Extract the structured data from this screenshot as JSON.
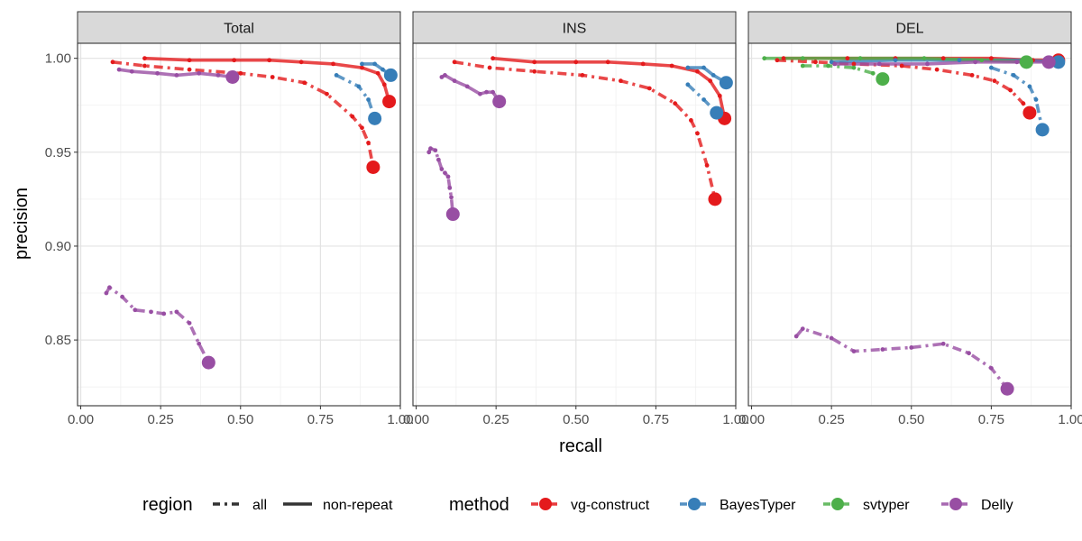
{
  "chart_data": {
    "type": "line",
    "x_label": "recall",
    "y_label": "precision",
    "xlim": [
      -0.01,
      1.0
    ],
    "ylim": [
      0.815,
      1.008
    ],
    "x_ticks": [
      "0.00",
      "0.25",
      "0.50",
      "0.75",
      "1.00"
    ],
    "y_ticks": [
      "0.85",
      "0.90",
      "0.95",
      "1.00"
    ],
    "grid": true,
    "legend_position": "bottom",
    "legend": {
      "region": {
        "title": "region",
        "items": [
          {
            "label": "all",
            "linetype": "dashed"
          },
          {
            "label": "non-repeat",
            "linetype": "solid"
          }
        ]
      },
      "method": {
        "title": "method",
        "items": [
          {
            "label": "vg-construct",
            "color": "#E41A1C"
          },
          {
            "label": "BayesTyper",
            "color": "#377EB8"
          },
          {
            "label": "svtyper",
            "color": "#4DAF4A"
          },
          {
            "label": "Delly",
            "color": "#984EA3"
          }
        ]
      }
    },
    "panels": [
      {
        "title": "Total",
        "series": [
          {
            "method": "vg-construct",
            "region": "all",
            "color": "#E41A1C",
            "points": [
              [
                0.1,
                0.998
              ],
              [
                0.2,
                0.996
              ],
              [
                0.34,
                0.994
              ],
              [
                0.5,
                0.992
              ],
              [
                0.6,
                0.99
              ],
              [
                0.7,
                0.987
              ],
              [
                0.77,
                0.981
              ],
              [
                0.85,
                0.969
              ],
              [
                0.88,
                0.963
              ],
              [
                0.9,
                0.955
              ],
              [
                0.915,
                0.942
              ]
            ]
          },
          {
            "method": "vg-construct",
            "region": "non-repeat",
            "color": "#E41A1C",
            "points": [
              [
                0.2,
                1.0
              ],
              [
                0.34,
                0.999
              ],
              [
                0.48,
                0.999
              ],
              [
                0.59,
                0.999
              ],
              [
                0.69,
                0.998
              ],
              [
                0.79,
                0.997
              ],
              [
                0.88,
                0.995
              ],
              [
                0.93,
                0.992
              ],
              [
                0.95,
                0.986
              ],
              [
                0.965,
                0.977
              ]
            ]
          },
          {
            "method": "BayesTyper",
            "region": "all",
            "color": "#377EB8",
            "points": [
              [
                0.8,
                0.991
              ],
              [
                0.87,
                0.985
              ],
              [
                0.9,
                0.978
              ],
              [
                0.92,
                0.968
              ]
            ]
          },
          {
            "method": "BayesTyper",
            "region": "non-repeat",
            "color": "#377EB8",
            "points": [
              [
                0.88,
                0.997
              ],
              [
                0.92,
                0.997
              ],
              [
                0.945,
                0.994
              ],
              [
                0.97,
                0.991
              ]
            ]
          },
          {
            "method": "Delly",
            "region": "all",
            "color": "#984EA3",
            "points": [
              [
                0.08,
                0.875
              ],
              [
                0.09,
                0.878
              ],
              [
                0.13,
                0.873
              ],
              [
                0.17,
                0.866
              ],
              [
                0.22,
                0.865
              ],
              [
                0.26,
                0.864
              ],
              [
                0.3,
                0.865
              ],
              [
                0.34,
                0.859
              ],
              [
                0.37,
                0.848
              ],
              [
                0.4,
                0.838
              ]
            ]
          },
          {
            "method": "Delly",
            "region": "non-repeat",
            "color": "#984EA3",
            "points": [
              [
                0.12,
                0.994
              ],
              [
                0.16,
                0.993
              ],
              [
                0.24,
                0.992
              ],
              [
                0.3,
                0.991
              ],
              [
                0.37,
                0.992
              ],
              [
                0.43,
                0.991
              ],
              [
                0.475,
                0.99
              ]
            ]
          }
        ]
      },
      {
        "title": "INS",
        "series": [
          {
            "method": "vg-construct",
            "region": "all",
            "color": "#E41A1C",
            "points": [
              [
                0.12,
                0.998
              ],
              [
                0.23,
                0.995
              ],
              [
                0.37,
                0.993
              ],
              [
                0.52,
                0.991
              ],
              [
                0.64,
                0.988
              ],
              [
                0.73,
                0.984
              ],
              [
                0.81,
                0.976
              ],
              [
                0.86,
                0.967
              ],
              [
                0.88,
                0.96
              ],
              [
                0.91,
                0.943
              ],
              [
                0.935,
                0.925
              ]
            ]
          },
          {
            "method": "vg-construct",
            "region": "non-repeat",
            "color": "#E41A1C",
            "points": [
              [
                0.24,
                1.0
              ],
              [
                0.37,
                0.998
              ],
              [
                0.5,
                0.998
              ],
              [
                0.6,
                0.998
              ],
              [
                0.71,
                0.997
              ],
              [
                0.8,
                0.996
              ],
              [
                0.88,
                0.993
              ],
              [
                0.92,
                0.988
              ],
              [
                0.95,
                0.98
              ],
              [
                0.965,
                0.968
              ]
            ]
          },
          {
            "method": "BayesTyper",
            "region": "all",
            "color": "#377EB8",
            "points": [
              [
                0.85,
                0.986
              ],
              [
                0.9,
                0.978
              ],
              [
                0.94,
                0.971
              ]
            ]
          },
          {
            "method": "BayesTyper",
            "region": "non-repeat",
            "color": "#377EB8",
            "points": [
              [
                0.85,
                0.995
              ],
              [
                0.9,
                0.995
              ],
              [
                0.93,
                0.991
              ],
              [
                0.97,
                0.987
              ]
            ]
          },
          {
            "method": "Delly",
            "region": "all",
            "color": "#984EA3",
            "points": [
              [
                0.04,
                0.95
              ],
              [
                0.045,
                0.952
              ],
              [
                0.06,
                0.951
              ],
              [
                0.07,
                0.946
              ],
              [
                0.08,
                0.941
              ],
              [
                0.09,
                0.939
              ],
              [
                0.1,
                0.937
              ],
              [
                0.105,
                0.931
              ],
              [
                0.11,
                0.926
              ],
              [
                0.115,
                0.917
              ]
            ]
          },
          {
            "method": "Delly",
            "region": "non-repeat",
            "color": "#984EA3",
            "points": [
              [
                0.08,
                0.99
              ],
              [
                0.09,
                0.991
              ],
              [
                0.12,
                0.988
              ],
              [
                0.16,
                0.985
              ],
              [
                0.2,
                0.981
              ],
              [
                0.22,
                0.982
              ],
              [
                0.24,
                0.982
              ],
              [
                0.26,
                0.977
              ]
            ]
          }
        ]
      },
      {
        "title": "DEL",
        "series": [
          {
            "method": "vg-construct",
            "region": "all",
            "color": "#E41A1C",
            "points": [
              [
                0.08,
                0.999
              ],
              [
                0.2,
                0.998
              ],
              [
                0.32,
                0.997
              ],
              [
                0.47,
                0.996
              ],
              [
                0.58,
                0.994
              ],
              [
                0.69,
                0.991
              ],
              [
                0.76,
                0.988
              ],
              [
                0.81,
                0.983
              ],
              [
                0.85,
                0.976
              ],
              [
                0.87,
                0.971
              ]
            ]
          },
          {
            "method": "vg-construct",
            "region": "non-repeat",
            "color": "#E41A1C",
            "points": [
              [
                0.1,
                1.0
              ],
              [
                0.3,
                1.0
              ],
              [
                0.45,
                1.0
              ],
              [
                0.6,
                1.0
              ],
              [
                0.75,
                1.0
              ],
              [
                0.88,
                0.999
              ],
              [
                0.96,
                0.999
              ]
            ]
          },
          {
            "method": "BayesTyper",
            "region": "all",
            "color": "#377EB8",
            "points": [
              [
                0.75,
                0.995
              ],
              [
                0.82,
                0.991
              ],
              [
                0.87,
                0.985
              ],
              [
                0.89,
                0.978
              ],
              [
                0.91,
                0.962
              ]
            ]
          },
          {
            "method": "BayesTyper",
            "region": "non-repeat",
            "color": "#377EB8",
            "points": [
              [
                0.25,
                0.998
              ],
              [
                0.45,
                0.999
              ],
              [
                0.65,
                0.999
              ],
              [
                0.85,
                0.999
              ],
              [
                0.96,
                0.998
              ]
            ]
          },
          {
            "method": "svtyper",
            "region": "all",
            "color": "#4DAF4A",
            "points": [
              [
                0.16,
                0.996
              ],
              [
                0.24,
                0.996
              ],
              [
                0.32,
                0.995
              ],
              [
                0.38,
                0.992
              ],
              [
                0.41,
                0.989
              ]
            ]
          },
          {
            "method": "svtyper",
            "region": "non-repeat",
            "color": "#4DAF4A",
            "points": [
              [
                0.04,
                1.0
              ],
              [
                0.16,
                1.0
              ],
              [
                0.34,
                1.0
              ],
              [
                0.54,
                1.0
              ],
              [
                0.72,
                0.999
              ],
              [
                0.86,
                0.998
              ]
            ]
          },
          {
            "method": "Delly",
            "region": "all",
            "color": "#984EA3",
            "points": [
              [
                0.14,
                0.852
              ],
              [
                0.16,
                0.856
              ],
              [
                0.25,
                0.851
              ],
              [
                0.32,
                0.844
              ],
              [
                0.41,
                0.845
              ],
              [
                0.5,
                0.846
              ],
              [
                0.6,
                0.848
              ],
              [
                0.68,
                0.843
              ],
              [
                0.75,
                0.835
              ],
              [
                0.8,
                0.824
              ]
            ]
          },
          {
            "method": "Delly",
            "region": "non-repeat",
            "color": "#984EA3",
            "points": [
              [
                0.26,
                0.997
              ],
              [
                0.4,
                0.997
              ],
              [
                0.55,
                0.997
              ],
              [
                0.7,
                0.998
              ],
              [
                0.83,
                0.998
              ],
              [
                0.93,
                0.998
              ]
            ]
          }
        ]
      }
    ]
  }
}
